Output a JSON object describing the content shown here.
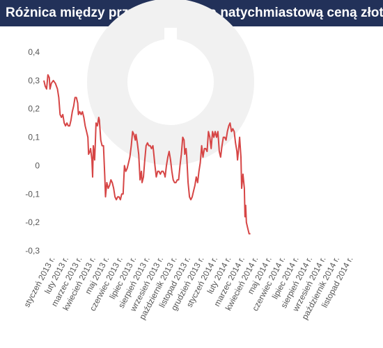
{
  "header": {
    "title": "Różnica między przyszłościową a natychmiastową ceną złota",
    "background": "#223159"
  },
  "chart_data": {
    "type": "line",
    "title": "Różnica między przyszłościową a natychmiastową ceną złota",
    "xlabel": "",
    "ylabel": "",
    "ylim": [
      -0.3,
      0.4
    ],
    "yticks": [
      {
        "v": 0.4,
        "label": "0,4"
      },
      {
        "v": 0.3,
        "label": "0,3"
      },
      {
        "v": 0.2,
        "label": "0,2"
      },
      {
        "v": 0.1,
        "label": "0,1"
      },
      {
        "v": 0.0,
        "label": "0"
      },
      {
        "v": -0.1,
        "label": "-0,1"
      },
      {
        "v": -0.2,
        "label": "-0,2"
      },
      {
        "v": -0.3,
        "label": "-0,3"
      }
    ],
    "grid": false,
    "line_color": "#d64545",
    "xticks": [
      "styczeń 2013 r.",
      "luty 2013 r.",
      "marzec 2013 r.",
      "kwiecień 2013 r.",
      "maj 2013 r.",
      "czerwiec 2013 r.",
      "lipiec 2013 r.",
      "sierpień 2013 r.",
      "wrzesień 2013 r.",
      "październik 2013 r.",
      "listopad 2013 r.",
      "grudzień 2013 r.",
      "styczeń 2014 r.",
      "luty 2014 r.",
      "marzec 2014 r.",
      "kwiecień 2014 r.",
      "maj 2014 r.",
      "czerwiec 2014 r.",
      "lipiec 2014 r.",
      "sierpień 2014 r.",
      "wrzesień 2014 r.",
      "październik 2014 r.",
      "listopad 2014 r."
    ],
    "series": [
      {
        "points": [
          [
            0.0,
            0.3
          ],
          [
            0.1,
            0.28
          ],
          [
            0.2,
            0.27
          ],
          [
            0.3,
            0.32
          ],
          [
            0.4,
            0.31
          ],
          [
            0.45,
            0.27
          ],
          [
            0.55,
            0.29
          ],
          [
            0.7,
            0.3
          ],
          [
            0.85,
            0.29
          ],
          [
            1.0,
            0.27
          ],
          [
            1.1,
            0.24
          ],
          [
            1.2,
            0.18
          ],
          [
            1.3,
            0.17
          ],
          [
            1.4,
            0.18
          ],
          [
            1.5,
            0.15
          ],
          [
            1.6,
            0.14
          ],
          [
            1.7,
            0.15
          ],
          [
            1.8,
            0.14
          ],
          [
            1.9,
            0.14
          ],
          [
            2.0,
            0.16
          ],
          [
            2.1,
            0.19
          ],
          [
            2.2,
            0.21
          ],
          [
            2.3,
            0.24
          ],
          [
            2.4,
            0.24
          ],
          [
            2.5,
            0.22
          ],
          [
            2.55,
            0.18
          ],
          [
            2.65,
            0.19
          ],
          [
            2.75,
            0.18
          ],
          [
            2.85,
            0.19
          ],
          [
            2.95,
            0.17
          ],
          [
            3.05,
            0.14
          ],
          [
            3.15,
            0.12
          ],
          [
            3.25,
            0.1
          ],
          [
            3.3,
            0.04
          ],
          [
            3.4,
            0.05
          ],
          [
            3.45,
            0.06
          ],
          [
            3.55,
            0.02
          ],
          [
            3.6,
            -0.04
          ],
          [
            3.65,
            0.07
          ],
          [
            3.75,
            0.02
          ],
          [
            3.8,
            0.08
          ],
          [
            3.85,
            0.15
          ],
          [
            3.95,
            0.14
          ],
          [
            4.05,
            0.17
          ],
          [
            4.1,
            0.16
          ],
          [
            4.2,
            0.09
          ],
          [
            4.3,
            0.07
          ],
          [
            4.4,
            0.07
          ],
          [
            4.5,
            -0.04
          ],
          [
            4.55,
            -0.11
          ],
          [
            4.65,
            -0.06
          ],
          [
            4.75,
            -0.08
          ],
          [
            4.85,
            -0.07
          ],
          [
            4.95,
            -0.05
          ],
          [
            5.05,
            -0.06
          ],
          [
            5.15,
            -0.08
          ],
          [
            5.25,
            -0.11
          ],
          [
            5.35,
            -0.12
          ],
          [
            5.45,
            -0.11
          ],
          [
            5.55,
            -0.11
          ],
          [
            5.65,
            -0.12
          ],
          [
            5.75,
            -0.1
          ],
          [
            5.85,
            -0.1
          ],
          [
            5.95,
            0.0
          ],
          [
            6.05,
            -0.02
          ],
          [
            6.15,
            -0.01
          ],
          [
            6.25,
            0.01
          ],
          [
            6.35,
            0.03
          ],
          [
            6.45,
            0.07
          ],
          [
            6.55,
            0.12
          ],
          [
            6.65,
            0.11
          ],
          [
            6.75,
            0.09
          ],
          [
            6.8,
            0.11
          ],
          [
            6.9,
            0.08
          ],
          [
            7.0,
            0.04
          ],
          [
            7.1,
            -0.05
          ],
          [
            7.2,
            -0.02
          ],
          [
            7.25,
            -0.06
          ],
          [
            7.35,
            -0.04
          ],
          [
            7.45,
            0.02
          ],
          [
            7.55,
            0.07
          ],
          [
            7.65,
            0.08
          ],
          [
            7.75,
            0.07
          ],
          [
            7.85,
            0.07
          ],
          [
            7.95,
            0.06
          ],
          [
            8.05,
            0.07
          ],
          [
            8.1,
            0.05
          ],
          [
            8.2,
            0.0
          ],
          [
            8.3,
            -0.04
          ],
          [
            8.4,
            -0.02
          ],
          [
            8.5,
            -0.02
          ],
          [
            8.6,
            -0.03
          ],
          [
            8.7,
            -0.02
          ],
          [
            8.8,
            -0.02
          ],
          [
            8.9,
            -0.03
          ],
          [
            8.95,
            -0.04
          ],
          [
            9.05,
            0.0
          ],
          [
            9.15,
            0.03
          ],
          [
            9.25,
            0.05
          ],
          [
            9.35,
            0.02
          ],
          [
            9.45,
            -0.02
          ],
          [
            9.55,
            -0.05
          ],
          [
            9.65,
            -0.06
          ],
          [
            9.75,
            -0.06
          ],
          [
            9.85,
            -0.05
          ],
          [
            9.95,
            -0.05
          ],
          [
            10.05,
            0.0
          ],
          [
            10.15,
            0.04
          ],
          [
            10.25,
            0.1
          ],
          [
            10.35,
            0.09
          ],
          [
            10.4,
            0.04
          ],
          [
            10.5,
            0.06
          ],
          [
            10.55,
            0.03
          ],
          [
            10.65,
            -0.06
          ],
          [
            10.75,
            -0.11
          ],
          [
            10.85,
            -0.12
          ],
          [
            10.95,
            -0.11
          ],
          [
            11.05,
            -0.09
          ],
          [
            11.15,
            -0.07
          ],
          [
            11.25,
            -0.04
          ],
          [
            11.35,
            -0.06
          ],
          [
            11.45,
            -0.02
          ],
          [
            11.55,
            0.01
          ],
          [
            11.65,
            0.07
          ],
          [
            11.75,
            0.03
          ],
          [
            11.85,
            0.06
          ],
          [
            11.95,
            0.06
          ],
          [
            12.05,
            0.05
          ],
          [
            12.15,
            0.12
          ],
          [
            12.25,
            0.1
          ],
          [
            12.35,
            0.06
          ],
          [
            12.45,
            0.12
          ],
          [
            12.55,
            0.1
          ],
          [
            12.65,
            0.12
          ],
          [
            12.75,
            0.1
          ],
          [
            12.85,
            0.12
          ],
          [
            12.95,
            0.05
          ],
          [
            13.05,
            0.03
          ],
          [
            13.15,
            0.07
          ],
          [
            13.25,
            0.1
          ],
          [
            13.35,
            0.1
          ],
          [
            13.45,
            0.09
          ],
          [
            13.55,
            0.12
          ],
          [
            13.65,
            0.14
          ],
          [
            13.75,
            0.15
          ],
          [
            13.85,
            0.12
          ],
          [
            13.95,
            0.13
          ],
          [
            14.05,
            0.12
          ],
          [
            14.15,
            0.08
          ],
          [
            14.25,
            0.05
          ],
          [
            14.3,
            0.02
          ],
          [
            14.4,
            0.07
          ],
          [
            14.45,
            0.1
          ],
          [
            14.55,
            0.03
          ],
          [
            14.6,
            -0.08
          ],
          [
            14.7,
            -0.03
          ],
          [
            14.8,
            -0.08
          ],
          [
            14.85,
            -0.18
          ],
          [
            14.9,
            -0.14
          ],
          [
            14.95,
            -0.2
          ],
          [
            15.05,
            -0.22
          ],
          [
            15.15,
            -0.24
          ],
          [
            15.25,
            -0.24
          ]
        ]
      }
    ]
  }
}
